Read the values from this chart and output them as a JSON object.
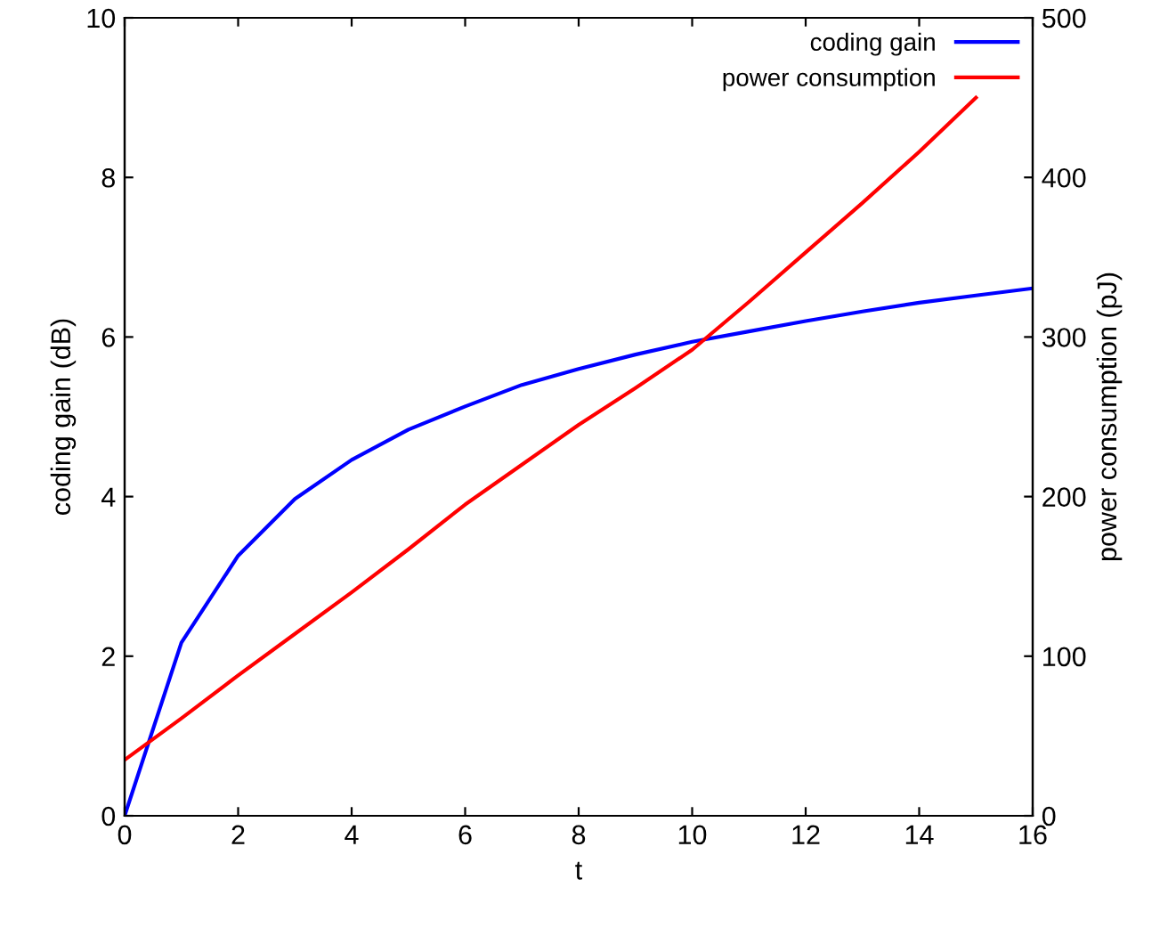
{
  "chart_data": {
    "type": "line",
    "xlabel": "t",
    "ylabel": "coding gain (dB)",
    "y2label": "power consumption (pJ)",
    "xlim": [
      0,
      16
    ],
    "xticks": [
      0,
      2,
      4,
      6,
      8,
      10,
      12,
      14,
      16
    ],
    "ylim": [
      0,
      10
    ],
    "yticks": [
      0,
      2,
      4,
      6,
      8,
      10
    ],
    "y2lim": [
      0,
      500
    ],
    "y2ticks": [
      0,
      100,
      200,
      300,
      400,
      500
    ],
    "legend": "top right",
    "grid": false,
    "marker": "none",
    "line_style": "solid",
    "series": [
      {
        "name": "coding gain",
        "color": "#0000ff",
        "x": [
          0,
          1,
          2,
          3,
          4,
          5,
          6,
          7,
          8,
          9,
          10,
          11,
          12,
          13,
          14,
          15,
          16
        ],
        "values": [
          0,
          2.17,
          3.26,
          3.97,
          4.46,
          4.84,
          5.13,
          5.4,
          5.6,
          5.78,
          5.94,
          6.07,
          6.2,
          6.32,
          6.43,
          6.52,
          6.61
        ]
      },
      {
        "name": "power consumption",
        "color": "#ff0000",
        "axis": "y2",
        "x": [
          0,
          1,
          2,
          3,
          4,
          5,
          6,
          7,
          8,
          9,
          10,
          11,
          12,
          13,
          14,
          15
        ],
        "values": [
          35,
          61,
          88,
          114,
          140,
          167,
          195,
          220,
          245,
          268,
          292,
          322,
          353,
          384,
          416,
          450
        ]
      }
    ]
  }
}
